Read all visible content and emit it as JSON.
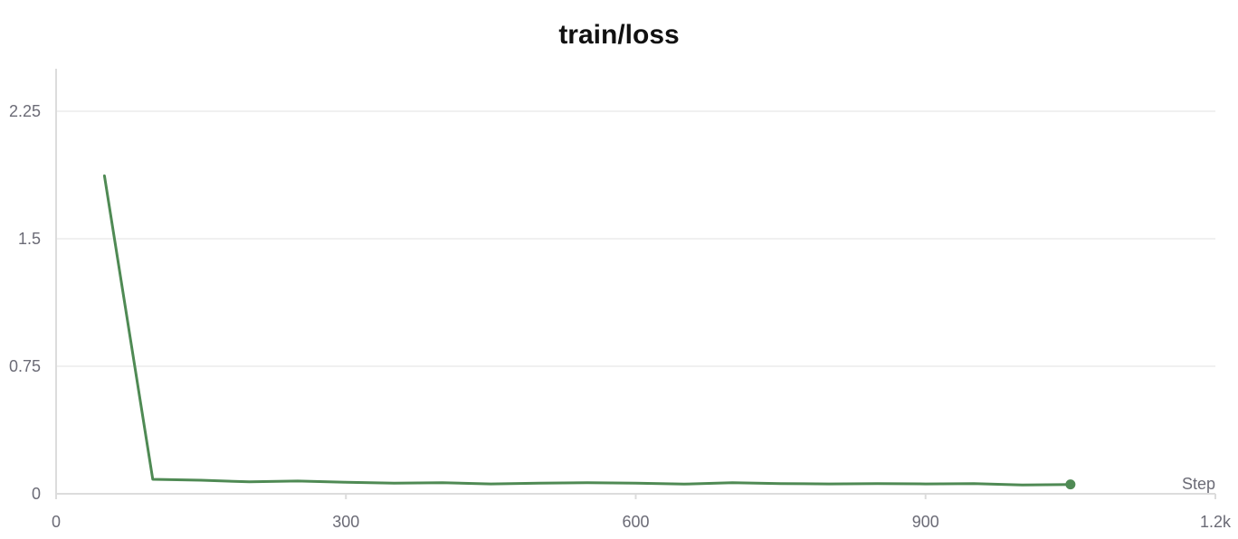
{
  "chart_data": {
    "type": "line",
    "title": "train/loss",
    "xlabel": "Step",
    "ylabel": "",
    "xlim": [
      0,
      1200
    ],
    "ylim": [
      0,
      2.5
    ],
    "x_ticks": [
      0,
      300,
      600,
      900,
      1200
    ],
    "x_tick_labels": [
      "0",
      "300",
      "600",
      "900",
      "1.2k"
    ],
    "y_ticks": [
      0,
      0.75,
      1.5,
      2.25
    ],
    "y_tick_labels": [
      "0",
      "0.75",
      "1.5",
      "2.25"
    ],
    "grid": true,
    "legend": "none",
    "series": [
      {
        "color": "#4f8a54",
        "x": [
          50,
          100,
          150,
          200,
          250,
          300,
          350,
          400,
          450,
          500,
          550,
          600,
          650,
          700,
          750,
          800,
          850,
          900,
          950,
          1000,
          1050
        ],
        "y": [
          1.87,
          0.085,
          0.08,
          0.07,
          0.075,
          0.068,
          0.062,
          0.065,
          0.058,
          0.062,
          0.065,
          0.062,
          0.057,
          0.065,
          0.06,
          0.058,
          0.06,
          0.058,
          0.06,
          0.052,
          0.055
        ]
      }
    ]
  }
}
